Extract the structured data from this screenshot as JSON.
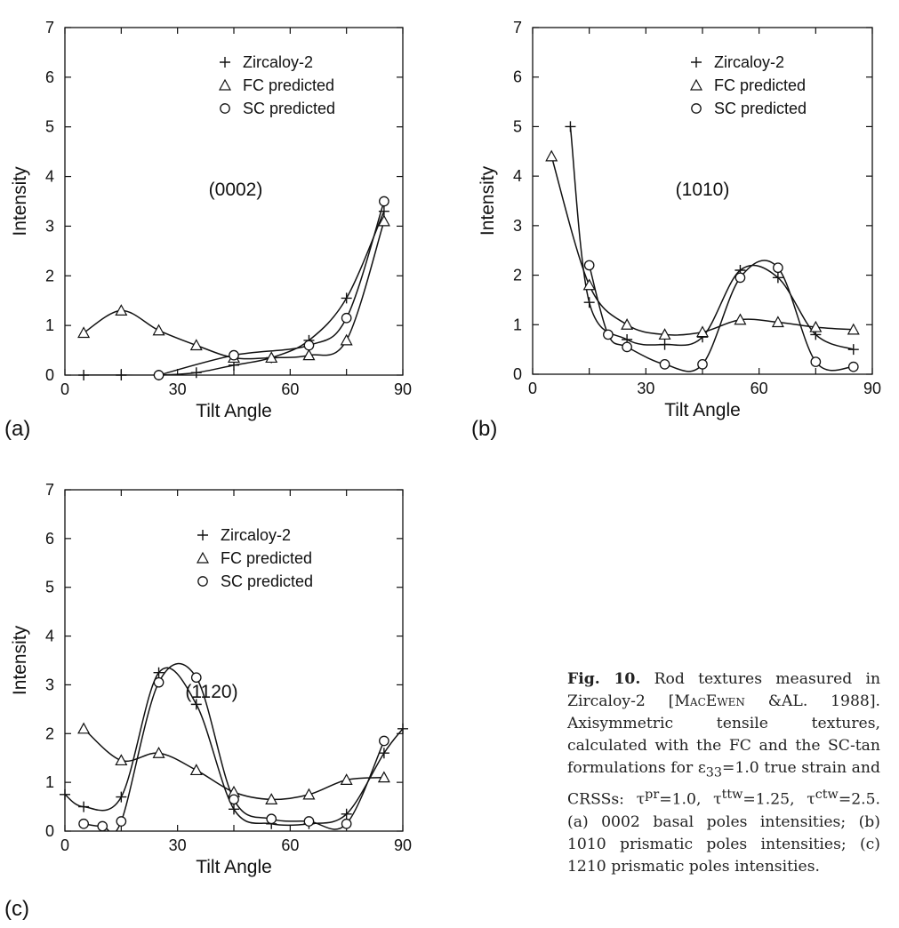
{
  "figures": [
    {
      "id": "a",
      "panel_label": "(a)",
      "annotation_text": "(0002)",
      "legend_entries": [
        "Zircaloy-2",
        "FC predicted",
        "SC predicted"
      ]
    },
    {
      "id": "b",
      "panel_label": "(b)",
      "annotation_text": "(1010)",
      "legend_entries": [
        "Zircaloy-2",
        "FC predicted",
        "SC predicted"
      ]
    },
    {
      "id": "c",
      "panel_label": "(c)",
      "annotation_text": "(1120)",
      "legend_entries": [
        "Zircaloy-2",
        "FC predicted",
        "SC predicted"
      ]
    }
  ],
  "chart_data": [
    {
      "type": "line",
      "panel": "(a)",
      "annotation": "(0002)",
      "xlabel": "Tilt Angle",
      "ylabel": "Intensity",
      "xlim": [
        0,
        90
      ],
      "ylim": [
        0,
        7
      ],
      "xticks": [
        0,
        30,
        60,
        90
      ],
      "yticks": [
        0,
        1,
        2,
        3,
        4,
        5,
        6,
        7
      ],
      "legend": "top-right",
      "series": [
        {
          "name": "Zircaloy-2",
          "marker": "plus",
          "x": [
            5,
            15,
            25,
            35,
            45,
            55,
            65,
            75,
            85
          ],
          "y": [
            0,
            0,
            0,
            0.05,
            0.2,
            0.35,
            0.7,
            1.55,
            3.3
          ]
        },
        {
          "name": "FC predicted",
          "marker": "triangle",
          "x": [
            5,
            15,
            25,
            35,
            45,
            55,
            65,
            75,
            85
          ],
          "y": [
            0.85,
            1.3,
            0.9,
            0.6,
            0.35,
            0.35,
            0.4,
            0.7,
            3.1
          ]
        },
        {
          "name": "SC predicted",
          "marker": "circle",
          "x": [
            25,
            45,
            65,
            75,
            85
          ],
          "y": [
            0,
            0.4,
            0.6,
            1.15,
            3.5
          ]
        }
      ]
    },
    {
      "type": "line",
      "panel": "(b)",
      "annotation": "(1010)",
      "xlabel": "Tilt Angle",
      "ylabel": "Intensity",
      "xlim": [
        0,
        90
      ],
      "ylim": [
        0,
        7
      ],
      "xticks": [
        0,
        30,
        60,
        90
      ],
      "yticks": [
        0,
        1,
        2,
        3,
        4,
        5,
        6,
        7
      ],
      "legend": "top-right",
      "series": [
        {
          "name": "Zircaloy-2",
          "marker": "plus",
          "x": [
            10,
            15,
            25,
            35,
            45,
            55,
            65,
            75,
            85
          ],
          "y": [
            5.0,
            1.45,
            0.7,
            0.6,
            0.75,
            2.1,
            1.95,
            0.8,
            0.5
          ]
        },
        {
          "name": "FC predicted",
          "marker": "triangle",
          "x": [
            5,
            15,
            25,
            35,
            45,
            55,
            65,
            75,
            85
          ],
          "y": [
            4.4,
            1.8,
            1.0,
            0.8,
            0.85,
            1.1,
            1.05,
            0.95,
            0.9
          ]
        },
        {
          "name": "SC predicted",
          "marker": "circle",
          "x": [
            15,
            20,
            25,
            35,
            45,
            55,
            65,
            75,
            85
          ],
          "y": [
            2.2,
            0.8,
            0.55,
            0.2,
            0.2,
            1.95,
            2.15,
            0.25,
            0.15
          ]
        }
      ]
    },
    {
      "type": "line",
      "panel": "(c)",
      "annotation": "(1120)",
      "xlabel": "Tilt Angle",
      "ylabel": "Intensity",
      "xlim": [
        0,
        90
      ],
      "ylim": [
        0,
        7
      ],
      "xticks": [
        0,
        30,
        60,
        90
      ],
      "yticks": [
        0,
        1,
        2,
        3,
        4,
        5,
        6,
        7
      ],
      "legend": "top-right",
      "series": [
        {
          "name": "Zircaloy-2",
          "marker": "plus",
          "x": [
            0,
            5,
            15,
            25,
            35,
            45,
            55,
            65,
            75,
            85,
            90
          ],
          "y": [
            0.75,
            0.5,
            0.7,
            3.25,
            2.6,
            0.45,
            0.15,
            0.15,
            0.35,
            1.6,
            2.1
          ]
        },
        {
          "name": "FC predicted",
          "marker": "triangle",
          "x": [
            5,
            15,
            25,
            35,
            45,
            55,
            65,
            75,
            85
          ],
          "y": [
            2.1,
            1.45,
            1.6,
            1.25,
            0.8,
            0.65,
            0.75,
            1.05,
            1.1
          ]
        },
        {
          "name": "SC predicted",
          "marker": "circle",
          "x": [
            5,
            10,
            15,
            25,
            35,
            45,
            55,
            65,
            75,
            85
          ],
          "y": [
            0.15,
            0.1,
            0.2,
            3.05,
            3.15,
            0.65,
            0.25,
            0.2,
            0.15,
            1.85
          ]
        }
      ]
    }
  ],
  "caption": {
    "fig_label": "Fig. 10.",
    "text_1": "Rod textures measured in Zircaloy-2 [",
    "author": "MacEwen",
    "text_2": " &AL. 1988]. Axisymmetric tensile textures, calculated with the FC and the SC-tan formulations for ε",
    "strain_sub": "33",
    "text_3": "=1.0 true strain and CRSSs: τ",
    "pr_sup": "pr",
    "text_4": "=1.0, τ",
    "ttw_sup": "ttw",
    "text_5": "=1.25, τ",
    "ctw_sup": "ctw",
    "text_6": "=2.5. (a) 0002 basal poles intensities; (b) 1010 prismatic poles intensities; (c) 1210 prismatic poles intensities."
  }
}
